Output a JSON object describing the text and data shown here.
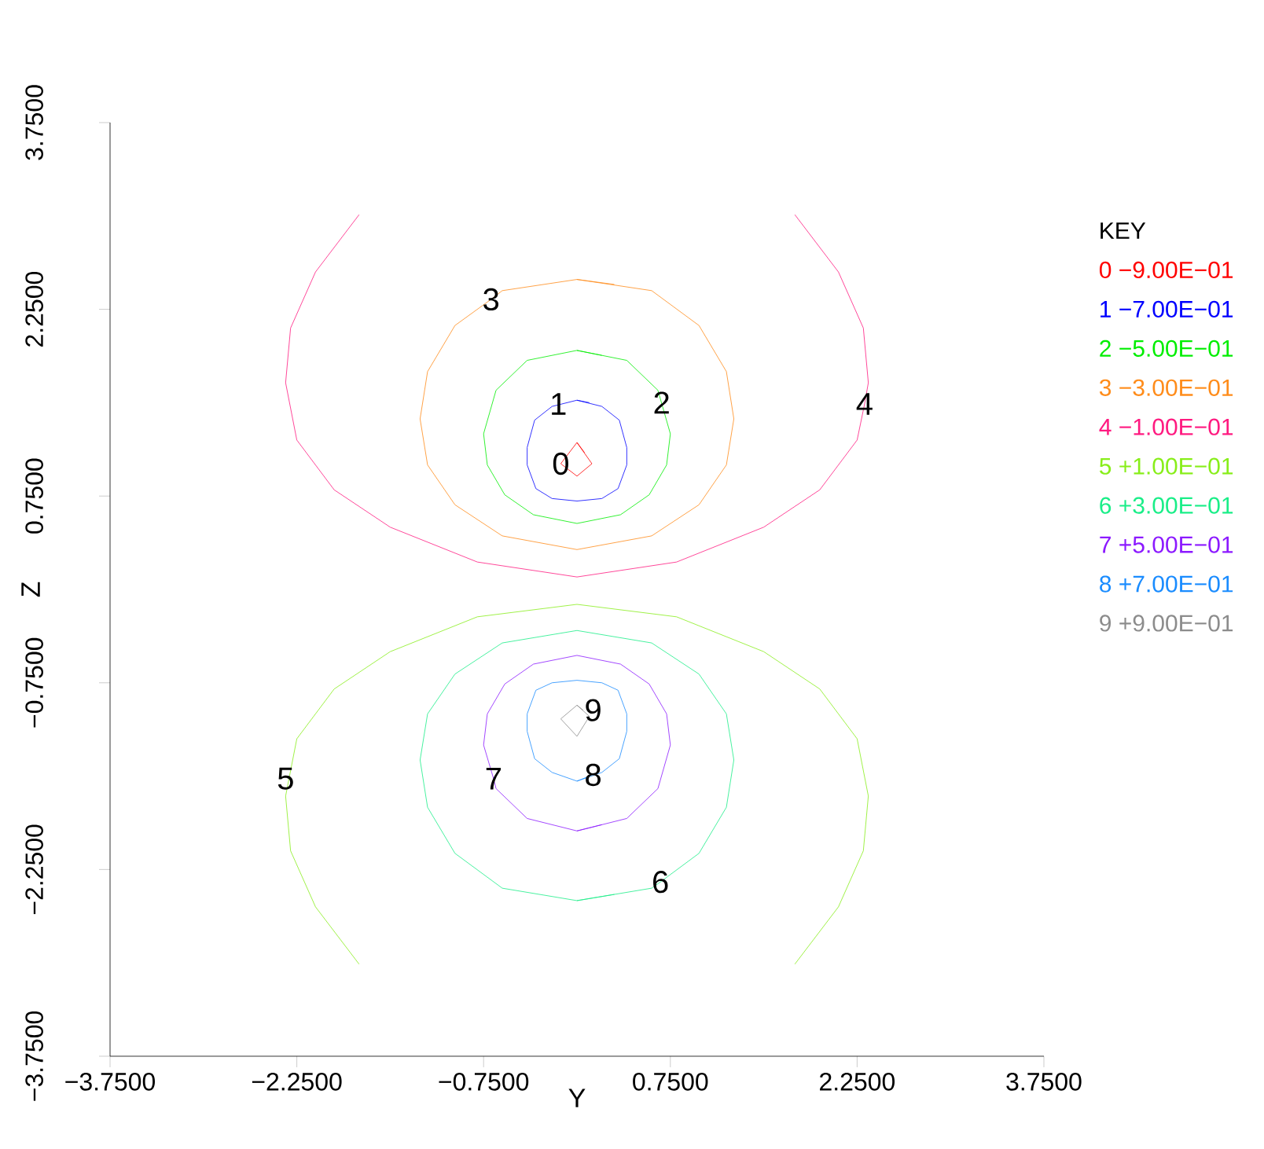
{
  "chart_data": {
    "type": "line",
    "xlabel": "Y",
    "ylabel": "Z",
    "legend_title": "KEY",
    "legend": "right",
    "grid": false,
    "xlim": [
      -3.75,
      3.75
    ],
    "ylim": [
      -3.75,
      3.75
    ],
    "xticks": [
      {
        "value": -3.75,
        "label": "−3.7500"
      },
      {
        "value": -2.25,
        "label": "−2.2500"
      },
      {
        "value": -0.75,
        "label": "−0.7500"
      },
      {
        "value": 0.75,
        "label": "0.7500"
      },
      {
        "value": 2.25,
        "label": "2.2500"
      },
      {
        "value": 3.75,
        "label": "3.7500"
      }
    ],
    "yticks": [
      {
        "value": -3.75,
        "label": "−3.7500"
      },
      {
        "value": -2.25,
        "label": "−2.2500"
      },
      {
        "value": -0.75,
        "label": "−0.7500"
      },
      {
        "value": 0.75,
        "label": "0.7500"
      },
      {
        "value": 2.25,
        "label": "2.2500"
      },
      {
        "value": 3.75,
        "label": "3.7500"
      }
    ],
    "series": [
      {
        "name": "0  −9.00E−01",
        "color": "#ff0000",
        "x": [
          0,
          0.12,
          0,
          -0.13,
          0,
          0.06
        ],
        "values": [
          1.18,
          1.01,
          0.91,
          1.01,
          1.18,
          1.1
        ]
      },
      {
        "name": "1  −7.00E−01",
        "color": "#0000ff",
        "x": [
          0,
          0.2,
          0.34,
          0.4,
          0.4,
          0.33,
          0.2,
          0,
          -0.2,
          -0.33,
          -0.4,
          -0.4,
          -0.34,
          -0.2,
          0,
          0.1
        ],
        "values": [
          1.52,
          1.47,
          1.36,
          1.14,
          1.0,
          0.81,
          0.73,
          0.71,
          0.73,
          0.81,
          1.0,
          1.14,
          1.36,
          1.47,
          1.52,
          1.5
        ]
      },
      {
        "name": "2  −5.00E−01",
        "color": "#00ee00",
        "x": [
          0,
          0.4,
          0.65,
          0.75,
          0.72,
          0.58,
          0.35,
          0,
          -0.35,
          -0.58,
          -0.72,
          -0.75,
          -0.65,
          -0.4,
          0,
          0.2
        ],
        "values": [
          1.92,
          1.84,
          1.6,
          1.25,
          1.0,
          0.76,
          0.6,
          0.53,
          0.6,
          0.76,
          1.0,
          1.25,
          1.6,
          1.84,
          1.92,
          1.88
        ]
      },
      {
        "name": "3  −3.00E−01",
        "color": "#ff8c1a",
        "x": [
          0,
          0.6,
          0.98,
          1.2,
          1.26,
          1.2,
          0.98,
          0.6,
          0,
          -0.6,
          -0.98,
          -1.2,
          -1.26,
          -1.2,
          -0.98,
          -0.69,
          -0.6,
          0,
          0.3
        ],
        "values": [
          2.49,
          2.4,
          2.12,
          1.75,
          1.37,
          1.0,
          0.68,
          0.43,
          0.32,
          0.43,
          0.68,
          1.0,
          1.37,
          1.75,
          2.12,
          2.33,
          2.4,
          2.49,
          2.45
        ]
      },
      {
        "name": "4  −1.00E−01",
        "color": "#ff1a80",
        "x": [
          -1.75,
          -2.1,
          -2.3,
          -2.34,
          -2.25,
          -1.95,
          -1.5,
          -0.8,
          0,
          0.8,
          1.5,
          1.95,
          2.25,
          2.31,
          2.34,
          2.3,
          2.1,
          1.75
        ],
        "values": [
          3.01,
          2.55,
          2.1,
          1.66,
          1.2,
          0.8,
          0.5,
          0.22,
          0.1,
          0.22,
          0.5,
          0.8,
          1.2,
          1.49,
          1.66,
          2.1,
          2.55,
          3.01
        ]
      },
      {
        "name": "5  +1.00E−01",
        "color": "#88ee1a",
        "x": [
          -1.75,
          -2.1,
          -2.3,
          -2.34,
          -2.25,
          -1.95,
          -1.5,
          -0.8,
          0,
          0.8,
          1.5,
          1.95,
          2.25,
          2.34,
          2.3,
          2.1,
          1.75
        ],
        "values": [
          -3.01,
          -2.55,
          -2.1,
          -1.66,
          -1.2,
          -0.8,
          -0.5,
          -0.22,
          -0.12,
          -0.22,
          -0.5,
          -0.8,
          -1.2,
          -1.66,
          -2.1,
          -2.55,
          -3.01
        ]
      },
      {
        "name": "6  +3.00E−01",
        "color": "#1aee88",
        "x": [
          0,
          0.6,
          0.67,
          0.98,
          1.2,
          1.26,
          1.2,
          0.98,
          0.6,
          0,
          -0.6,
          -0.98,
          -1.2,
          -1.26,
          -1.2,
          -0.98,
          -0.6,
          0,
          0.3
        ],
        "values": [
          -2.5,
          -2.4,
          -2.35,
          -2.12,
          -1.75,
          -1.37,
          -1.0,
          -0.68,
          -0.43,
          -0.33,
          -0.43,
          -0.68,
          -1.0,
          -1.37,
          -1.75,
          -2.12,
          -2.4,
          -2.5,
          -2.45
        ]
      },
      {
        "name": "7  +5.00E−01",
        "color": "#8c1aff",
        "x": [
          0,
          0.4,
          0.65,
          0.75,
          0.72,
          0.58,
          0.35,
          0,
          -0.35,
          -0.58,
          -0.72,
          -0.75,
          -0.67,
          -0.65,
          -0.4,
          0,
          0.2
        ],
        "values": [
          -1.94,
          -1.84,
          -1.6,
          -1.25,
          -1.0,
          -0.76,
          -0.6,
          -0.53,
          -0.6,
          -0.76,
          -1.0,
          -1.25,
          -1.52,
          -1.6,
          -1.84,
          -1.94,
          -1.89
        ]
      },
      {
        "name": "8  +7.00E−01",
        "color": "#1a8cff",
        "x": [
          0,
          0.2,
          0.34,
          0.4,
          0.4,
          0.33,
          0.2,
          0,
          -0.2,
          -0.33,
          -0.4,
          -0.4,
          -0.34,
          -0.2,
          0,
          0.1
        ],
        "values": [
          -1.54,
          -1.47,
          -1.36,
          -1.14,
          -1.0,
          -0.81,
          -0.75,
          -0.73,
          -0.75,
          -0.81,
          -1.0,
          -1.14,
          -1.36,
          -1.47,
          -1.54,
          -1.5
        ]
      },
      {
        "name": "9  +9.00E−01",
        "color": "#8c8c8c",
        "x": [
          0,
          0.1,
          0,
          -0.13,
          0,
          0.05
        ],
        "values": [
          -0.93,
          -1.02,
          -1.18,
          -1.04,
          -0.93,
          -0.97
        ]
      }
    ],
    "annotations": [
      {
        "text": "0",
        "x": -0.13,
        "y": 1.01
      },
      {
        "text": "1",
        "x": -0.15,
        "y": 1.49
      },
      {
        "text": "2",
        "x": 0.68,
        "y": 1.5
      },
      {
        "text": "3",
        "x": -0.69,
        "y": 2.33
      },
      {
        "text": "4",
        "x": 2.31,
        "y": 1.49
      },
      {
        "text": "5",
        "x": -2.34,
        "y": -1.52
      },
      {
        "text": "6",
        "x": 0.67,
        "y": -2.35
      },
      {
        "text": "7",
        "x": -0.67,
        "y": -1.52
      },
      {
        "text": "8",
        "x": 0.13,
        "y": -1.49
      },
      {
        "text": "9",
        "x": 0.13,
        "y": -0.97
      }
    ]
  }
}
